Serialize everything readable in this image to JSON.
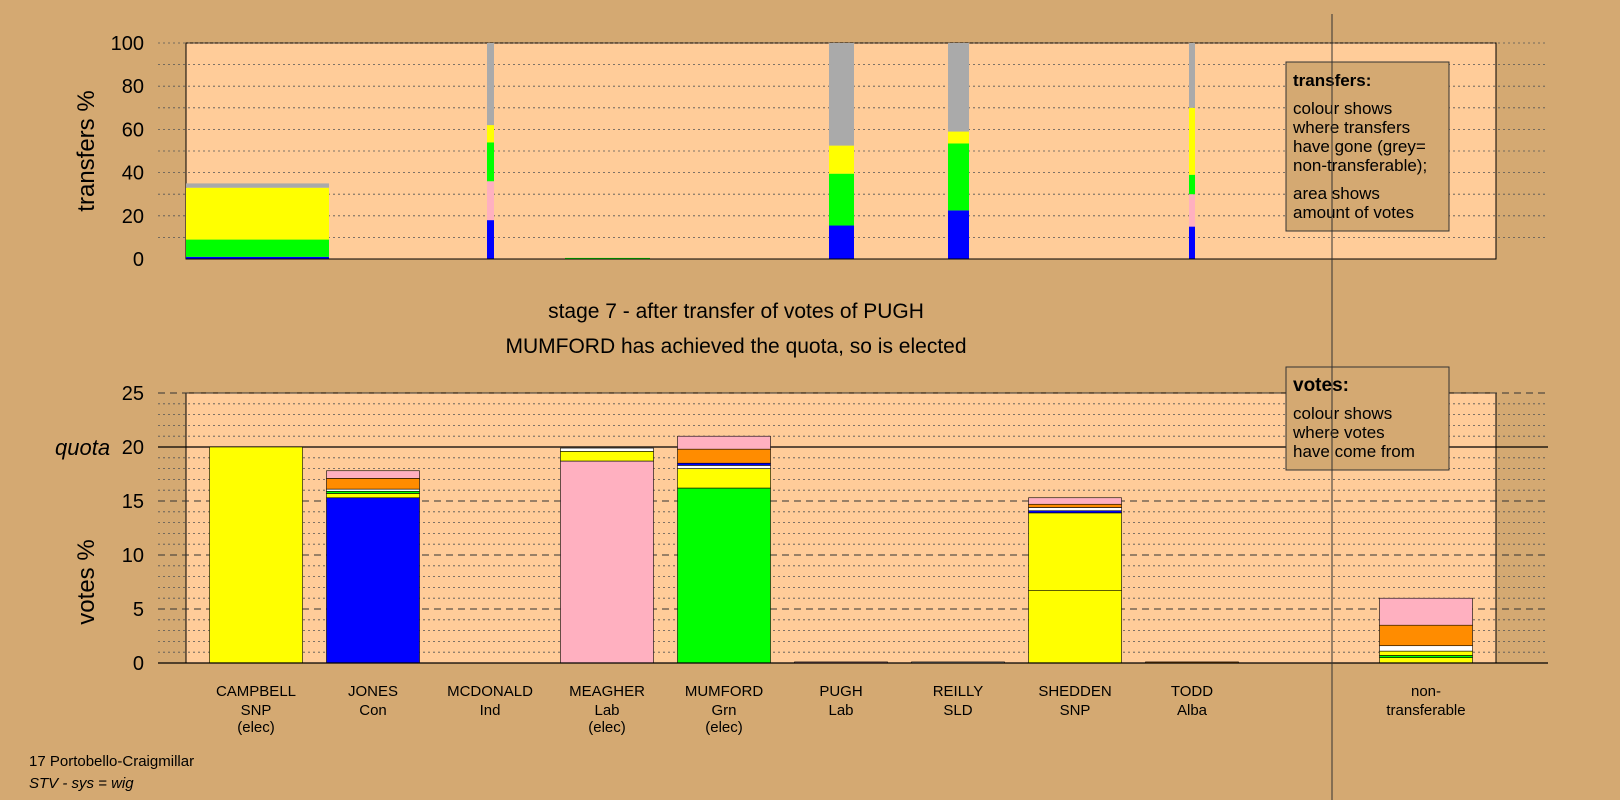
{
  "colors": {
    "background": "#d4a972",
    "plot_area": "#ffcc99",
    "SNP": "#ffff00",
    "Con": "#0000ff",
    "Lab": "#ffb0c0",
    "Grn": "#00ff00",
    "Alba": "#ff8c00",
    "SLD": "#ffffff",
    "Ind": "#ffe0e8",
    "nontransferable": "#aaaaaa"
  },
  "stage": {
    "line1": "stage 7 - after transfer of votes of PUGH",
    "line2": "MUMFORD has achieved the quota, so is elected"
  },
  "footer": {
    "ward": "17 Portobello-Craigmillar",
    "system": "STV - sys = wig"
  },
  "legend_transfers": {
    "title": "transfers:",
    "para1": [
      "colour shows",
      "where transfers",
      "have gone (grey=",
      "non-transferable);"
    ],
    "para2": [
      "area shows",
      "amount of votes"
    ]
  },
  "legend_votes": {
    "title": "votes:",
    "para1": [
      "colour shows",
      "where votes",
      "have come from"
    ]
  },
  "chart_data": [
    {
      "type": "bar",
      "panel": "transfers",
      "ylabel": "transfers %",
      "ylim": [
        0,
        100
      ],
      "yticks": [
        0,
        20,
        40,
        60,
        80,
        100
      ],
      "grid": "dotted",
      "columns": [
        {
          "candidate": "CAMPBELL",
          "width_share": 0.35,
          "segments": [
            {
              "party": "Con",
              "value": 1
            },
            {
              "party": "Grn",
              "value": 8
            },
            {
              "party": "SNP",
              "value": 24
            },
            {
              "party": "nontransferable",
              "value": 2
            }
          ]
        },
        {
          "candidate": "JONES",
          "width_share": 0.01,
          "segments": [
            {
              "party": "Con",
              "value": 18
            },
            {
              "party": "Lab",
              "value": 18
            },
            {
              "party": "Grn",
              "value": 18
            },
            {
              "party": "SNP",
              "value": 8
            },
            {
              "party": "nontransferable",
              "value": 38
            }
          ]
        },
        {
          "candidate": "MCDONALD",
          "width_share": 0.18,
          "segments": [
            {
              "party": "Grn",
              "value": 0.5
            }
          ]
        },
        {
          "candidate": "MUMFORD",
          "width_share": 0.06,
          "segments": [
            {
              "party": "Con",
              "value": 15.5
            },
            {
              "party": "Grn",
              "value": 24
            },
            {
              "party": "SNP",
              "value": 13
            },
            {
              "party": "nontransferable",
              "value": 47.5
            }
          ]
        },
        {
          "candidate": "PUGH",
          "width_share": 0.05,
          "segments": [
            {
              "party": "Con",
              "value": 22.5
            },
            {
              "party": "Grn",
              "value": 31
            },
            {
              "party": "SNP",
              "value": 5.5
            },
            {
              "party": "nontransferable",
              "value": 41
            }
          ]
        },
        {
          "candidate": "TODD",
          "width_share": 0.01,
          "segments": [
            {
              "party": "Con",
              "value": 15
            },
            {
              "party": "Lab",
              "value": 15
            },
            {
              "party": "Grn",
              "value": 9
            },
            {
              "party": "SNP",
              "value": 31
            },
            {
              "party": "nontransferable",
              "value": 30
            }
          ]
        }
      ]
    },
    {
      "type": "bar",
      "panel": "votes",
      "ylabel": "votes %",
      "ylim": [
        0,
        25
      ],
      "yticks": [
        0,
        5,
        10,
        15,
        20,
        25
      ],
      "quota": 20,
      "quota_label": "quota",
      "grid": "dotted minor, dashed major",
      "categories": [
        {
          "name": "CAMPBELL",
          "party": "SNP",
          "status": "(elec)"
        },
        {
          "name": "JONES",
          "party": "Con",
          "status": ""
        },
        {
          "name": "MCDONALD",
          "party": "Ind",
          "status": ""
        },
        {
          "name": "MEAGHER",
          "party": "Lab",
          "status": "(elec)"
        },
        {
          "name": "MUMFORD",
          "party": "Grn",
          "status": "(elec)"
        },
        {
          "name": "PUGH",
          "party": "Lab",
          "status": ""
        },
        {
          "name": "REILLY",
          "party": "SLD",
          "status": ""
        },
        {
          "name": "SHEDDEN",
          "party": "SNP",
          "status": ""
        },
        {
          "name": "TODD",
          "party": "Alba",
          "status": ""
        }
      ],
      "nontransferable_label": [
        "non-",
        "transferable"
      ],
      "stacks": [
        [
          {
            "party": "SNP",
            "value": 20
          }
        ],
        [
          {
            "party": "Con",
            "value": 15.3
          },
          {
            "party": "SNP",
            "value": 0.4
          },
          {
            "party": "Grn",
            "value": 0.2
          },
          {
            "party": "SLD",
            "value": 0.2
          },
          {
            "party": "Alba",
            "value": 1
          },
          {
            "party": "Lab",
            "value": 0.7
          }
        ],
        [],
        [
          {
            "party": "Lab",
            "value": 18.7
          },
          {
            "party": "SNP",
            "value": 0.9
          },
          {
            "party": "SLD",
            "value": 0.3
          }
        ],
        [
          {
            "party": "Grn",
            "value": 16.2
          },
          {
            "party": "SNP",
            "value": 1.8
          },
          {
            "party": "SLD",
            "value": 0.3
          },
          {
            "party": "Con",
            "value": 0.2
          },
          {
            "party": "Alba",
            "value": 1.3
          },
          {
            "party": "Lab",
            "value": 1.2
          }
        ],
        [
          {
            "party": "Lab",
            "value": 0.1
          }
        ],
        [
          {
            "party": "SLD",
            "value": 0.1
          }
        ],
        [
          {
            "party": "SNP",
            "value": 6.7
          },
          {
            "party": "SNP",
            "value": 7.2
          },
          {
            "party": "Con",
            "value": 0.2
          },
          {
            "party": "SLD",
            "value": 0.3
          },
          {
            "party": "Alba",
            "value": 0.3
          },
          {
            "party": "Lab",
            "value": 0.6
          }
        ],
        [
          {
            "party": "Alba",
            "value": 0.1
          }
        ]
      ],
      "nontransferable_stack": [
        {
          "party": "SNP",
          "value": 0.5
        },
        {
          "party": "Grn",
          "value": 0.2
        },
        {
          "party": "SNP",
          "value": 0.4
        },
        {
          "party": "SLD",
          "value": 0.5
        },
        {
          "party": "Alba",
          "value": 1.9
        },
        {
          "party": "Lab",
          "value": 2.5
        }
      ]
    }
  ]
}
